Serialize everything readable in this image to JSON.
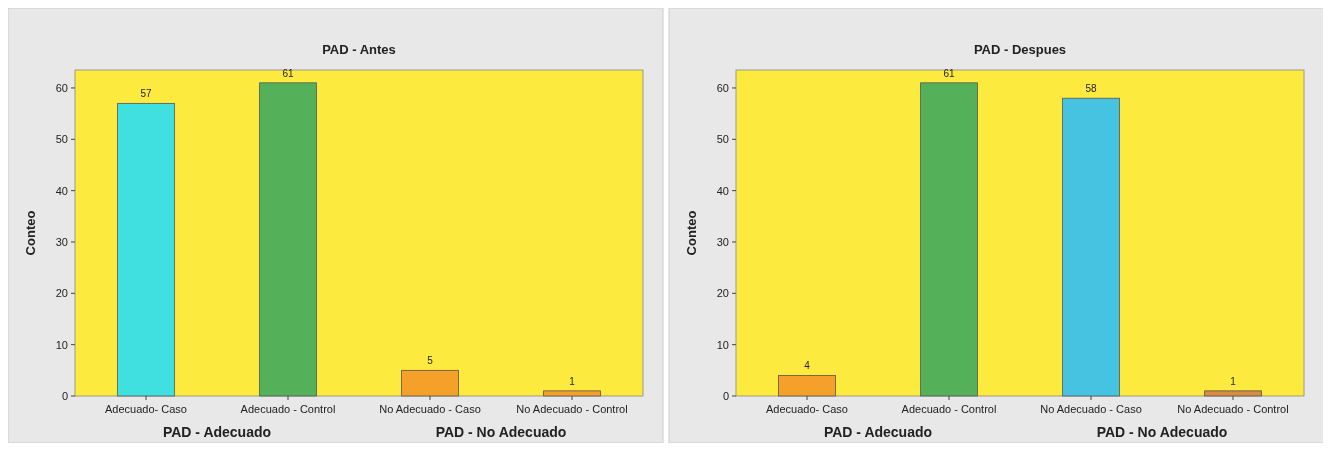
{
  "chart_data": [
    {
      "type": "bar",
      "title": "PAD - Antes",
      "ylabel": "Conteo",
      "categories": [
        "Adecuado- Caso",
        "Adecuado - Control",
        "No Adecuado - Caso",
        "No Adecuado - Control"
      ],
      "values": [
        57,
        61,
        5,
        1
      ],
      "colors": [
        "#40e0e0",
        "#55b05a",
        "#f5a02a",
        "#f5a02a"
      ],
      "ylim": [
        0,
        63.5
      ],
      "yticks": [
        0,
        10,
        20,
        30,
        40,
        50,
        60
      ],
      "data_labels": true,
      "annotations": [
        "PAD - Adecuado",
        "PAD - No Adecuado"
      ]
    },
    {
      "type": "bar",
      "title": "PAD - Despues",
      "ylabel": "Conteo",
      "categories": [
        "Adecuado- Caso",
        "Adecuado - Control",
        "No Adecuado - Caso",
        "No Adecuado - Control"
      ],
      "values": [
        4,
        61,
        58,
        1
      ],
      "colors": [
        "#f5a02a",
        "#55b05a",
        "#45c3e0",
        "#d98c3c"
      ],
      "ylim": [
        0,
        63.5
      ],
      "yticks": [
        0,
        10,
        20,
        30,
        40,
        50,
        60
      ],
      "data_labels": true,
      "annotations": [
        "PAD - Adecuado",
        "PAD - No Adecuado"
      ]
    }
  ]
}
